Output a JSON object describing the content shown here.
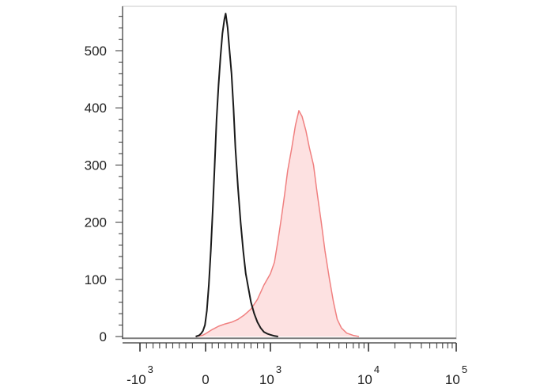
{
  "chart_data": {
    "type": "area",
    "title": "",
    "xlabel": "",
    "ylabel": "",
    "x_scale": "biexponential",
    "ylim": [
      0,
      570
    ],
    "y_ticks": [
      0,
      100,
      200,
      300,
      400,
      500
    ],
    "x_ticks": [
      {
        "base": "-10",
        "exp": "3",
        "value": -1000
      },
      {
        "base": "0",
        "exp": "",
        "value": 0
      },
      {
        "base": "10",
        "exp": "3",
        "value": 1000
      },
      {
        "base": "10",
        "exp": "4",
        "value": 10000
      },
      {
        "base": "10",
        "exp": "5",
        "value": 100000
      }
    ],
    "grid": false,
    "legend": "none",
    "series": [
      {
        "name": "",
        "color": "#1a1a1a",
        "fill": "none",
        "points": [
          [
            -150,
            0
          ],
          [
            -100,
            2
          ],
          [
            -70,
            5
          ],
          [
            -40,
            10
          ],
          [
            -10,
            20
          ],
          [
            20,
            45
          ],
          [
            50,
            90
          ],
          [
            80,
            150
          ],
          [
            110,
            220
          ],
          [
            140,
            300
          ],
          [
            170,
            380
          ],
          [
            200,
            440
          ],
          [
            230,
            490
          ],
          [
            260,
            530
          ],
          [
            290,
            555
          ],
          [
            310,
            565
          ],
          [
            340,
            540
          ],
          [
            370,
            500
          ],
          [
            400,
            460
          ],
          [
            430,
            400
          ],
          [
            460,
            330
          ],
          [
            500,
            260
          ],
          [
            540,
            200
          ],
          [
            580,
            150
          ],
          [
            620,
            110
          ],
          [
            660,
            85
          ],
          [
            700,
            60
          ],
          [
            750,
            40
          ],
          [
            800,
            25
          ],
          [
            850,
            15
          ],
          [
            900,
            8
          ],
          [
            950,
            5
          ],
          [
            1000,
            3
          ],
          [
            1100,
            1
          ],
          [
            1200,
            0
          ]
        ]
      },
      {
        "name": "",
        "color": "#f08080",
        "fill": "#fde1e1",
        "points": [
          [
            -150,
            0
          ],
          [
            -50,
            2
          ],
          [
            0,
            5
          ],
          [
            100,
            12
          ],
          [
            200,
            18
          ],
          [
            300,
            22
          ],
          [
            400,
            25
          ],
          [
            500,
            30
          ],
          [
            600,
            38
          ],
          [
            700,
            48
          ],
          [
            800,
            65
          ],
          [
            900,
            90
          ],
          [
            1000,
            110
          ],
          [
            1100,
            130
          ],
          [
            1200,
            170
          ],
          [
            1300,
            210
          ],
          [
            1400,
            250
          ],
          [
            1500,
            290
          ],
          [
            1650,
            330
          ],
          [
            1800,
            370
          ],
          [
            1950,
            395
          ],
          [
            2100,
            385
          ],
          [
            2300,
            360
          ],
          [
            2500,
            330
          ],
          [
            2750,
            300
          ],
          [
            3000,
            250
          ],
          [
            3300,
            200
          ],
          [
            3600,
            150
          ],
          [
            4000,
            100
          ],
          [
            4400,
            60
          ],
          [
            4800,
            30
          ],
          [
            5300,
            15
          ],
          [
            6000,
            6
          ],
          [
            7000,
            2
          ],
          [
            8000,
            0
          ]
        ]
      }
    ]
  }
}
